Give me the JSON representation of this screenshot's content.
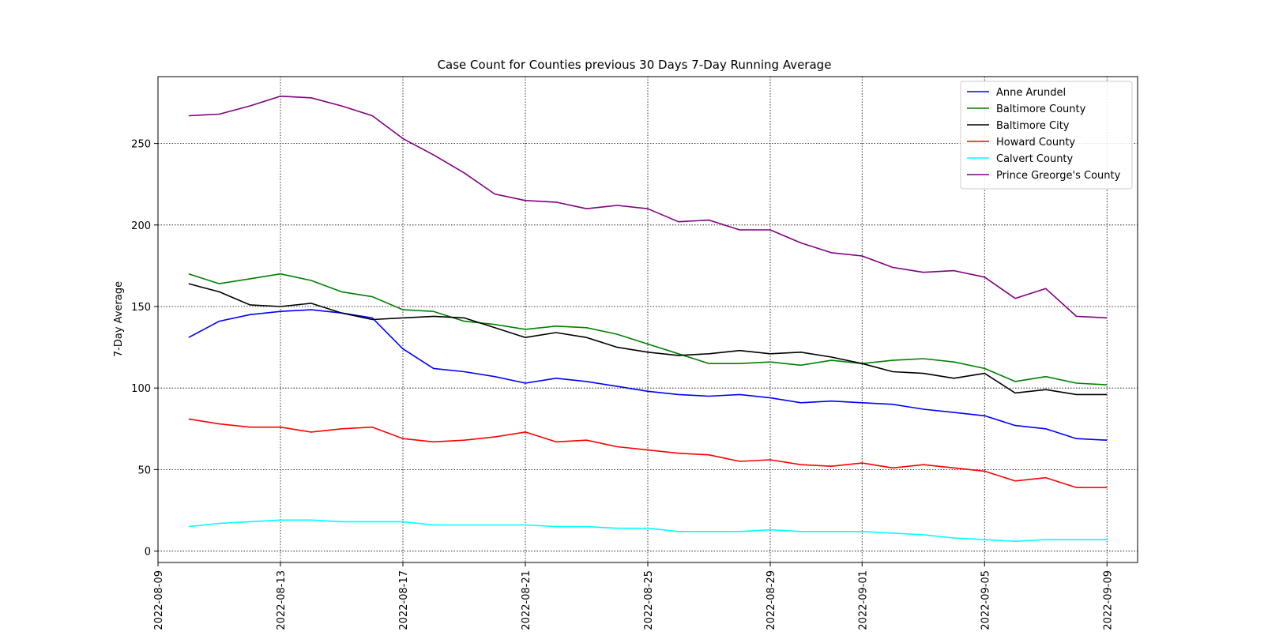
{
  "chart_data": {
    "type": "line",
    "title": "Case Count for Counties previous 30 Days 7-Day Running Average",
    "xlabel": "",
    "ylabel": "7-Day Average",
    "grid": true,
    "legend_position": "top-right",
    "ylim": [
      -7,
      291
    ],
    "xlim": [
      "2022-08-09",
      "2022-09-10"
    ],
    "x_ticks": [
      "2022-08-09",
      "2022-08-13",
      "2022-08-17",
      "2022-08-21",
      "2022-08-25",
      "2022-08-29",
      "2022-09-01",
      "2022-09-05",
      "2022-09-09"
    ],
    "y_ticks": [
      "0",
      "50",
      "100",
      "150",
      "200",
      "250"
    ],
    "x": [
      "2022-08-10",
      "2022-08-11",
      "2022-08-12",
      "2022-08-13",
      "2022-08-14",
      "2022-08-15",
      "2022-08-16",
      "2022-08-17",
      "2022-08-18",
      "2022-08-19",
      "2022-08-20",
      "2022-08-21",
      "2022-08-22",
      "2022-08-23",
      "2022-08-24",
      "2022-08-25",
      "2022-08-26",
      "2022-08-27",
      "2022-08-28",
      "2022-08-29",
      "2022-08-30",
      "2022-08-31",
      "2022-09-01",
      "2022-09-02",
      "2022-09-03",
      "2022-09-04",
      "2022-09-05",
      "2022-09-06",
      "2022-09-07",
      "2022-09-08",
      "2022-09-09"
    ],
    "series": [
      {
        "name": "Anne Arundel",
        "color": "#0000ff",
        "values": [
          131,
          141,
          145,
          147,
          148,
          146,
          143,
          124,
          112,
          110,
          107,
          103,
          106,
          104,
          101,
          98,
          96,
          95,
          96,
          94,
          91,
          92,
          91,
          90,
          87,
          85,
          83,
          77,
          75,
          69,
          68
        ]
      },
      {
        "name": "Baltimore County",
        "color": "#008000",
        "values": [
          170,
          164,
          167,
          170,
          166,
          159,
          156,
          148,
          147,
          141,
          139,
          136,
          138,
          137,
          133,
          127,
          121,
          115,
          115,
          116,
          114,
          117,
          115,
          117,
          118,
          116,
          112,
          104,
          107,
          103,
          102
        ]
      },
      {
        "name": "Baltimore City",
        "color": "#000000",
        "values": [
          164,
          159,
          151,
          150,
          152,
          146,
          142,
          143,
          144,
          143,
          137,
          131,
          134,
          131,
          125,
          122,
          120,
          121,
          123,
          121,
          122,
          119,
          115,
          110,
          109,
          106,
          109,
          97,
          99,
          96,
          96
        ]
      },
      {
        "name": "Howard County",
        "color": "#ff0000",
        "values": [
          81,
          78,
          76,
          76,
          73,
          75,
          76,
          69,
          67,
          68,
          70,
          73,
          67,
          68,
          64,
          62,
          60,
          59,
          55,
          56,
          53,
          52,
          54,
          51,
          53,
          51,
          49,
          43,
          45,
          39,
          39
        ]
      },
      {
        "name": "Calvert County",
        "color": "#00ffff",
        "values": [
          15,
          17,
          18,
          19,
          19,
          18,
          18,
          18,
          16,
          16,
          16,
          16,
          15,
          15,
          14,
          14,
          12,
          12,
          12,
          13,
          12,
          12,
          12,
          11,
          10,
          8,
          7,
          6,
          7,
          7,
          7
        ]
      },
      {
        "name": "Prince Greorge's County",
        "color": "#800080",
        "values": [
          267,
          268,
          273,
          279,
          278,
          273,
          267,
          253,
          243,
          232,
          219,
          215,
          214,
          210,
          212,
          210,
          202,
          203,
          197,
          197,
          189,
          183,
          181,
          174,
          171,
          172,
          168,
          155,
          161,
          144,
          143
        ]
      }
    ]
  }
}
